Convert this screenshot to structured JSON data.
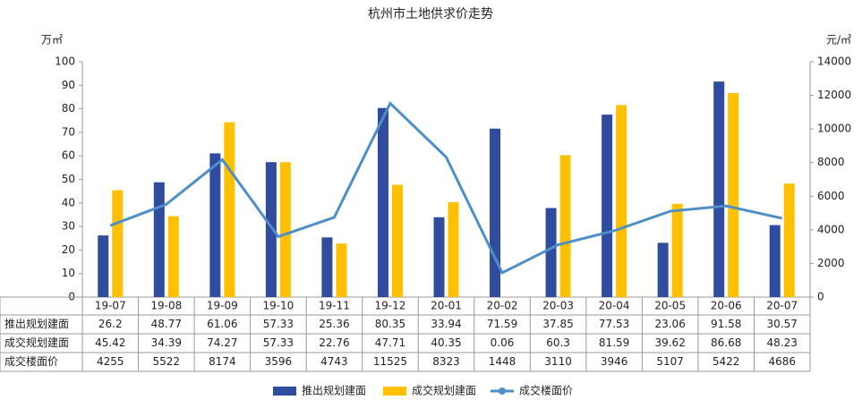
{
  "chart_data": {
    "type": "bar",
    "title": "杭州市土地供求价走势",
    "y_label": "万㎡",
    "y2_label": "元/㎡",
    "categories": [
      "19-07",
      "19-08",
      "19-09",
      "19-10",
      "19-11",
      "19-12",
      "20-01",
      "20-02",
      "20-03",
      "20-04",
      "20-05",
      "20-06",
      "20-07"
    ],
    "series": [
      {
        "name": "推出规划建面",
        "type": "bar",
        "color": "#2f4c9e",
        "values": [
          26.2,
          48.77,
          61.06,
          57.33,
          25.36,
          80.35,
          33.94,
          71.59,
          37.85,
          77.53,
          23.06,
          91.58,
          30.57
        ]
      },
      {
        "name": "成交规划建面",
        "type": "bar",
        "color": "#ffc000",
        "values": [
          45.42,
          34.39,
          74.27,
          57.33,
          22.76,
          47.71,
          40.35,
          0.06,
          60.3,
          81.59,
          39.62,
          86.68,
          48.23
        ]
      },
      {
        "name": "成交楼面价",
        "type": "line",
        "axis": "y2",
        "color": "#4f8fc7",
        "values": [
          4255,
          5522,
          8174,
          3596,
          4743,
          11525,
          8323,
          1448,
          3110,
          3946,
          5107,
          5422,
          4686
        ]
      }
    ],
    "ylim": [
      0,
      100
    ],
    "yticks": [
      0,
      10,
      20,
      30,
      40,
      50,
      60,
      70,
      80,
      90,
      100
    ],
    "y2lim": [
      0,
      14000
    ],
    "y2ticks": [
      0,
      2000,
      4000,
      6000,
      8000,
      10000,
      12000,
      14000
    ],
    "legend": "bottom"
  }
}
